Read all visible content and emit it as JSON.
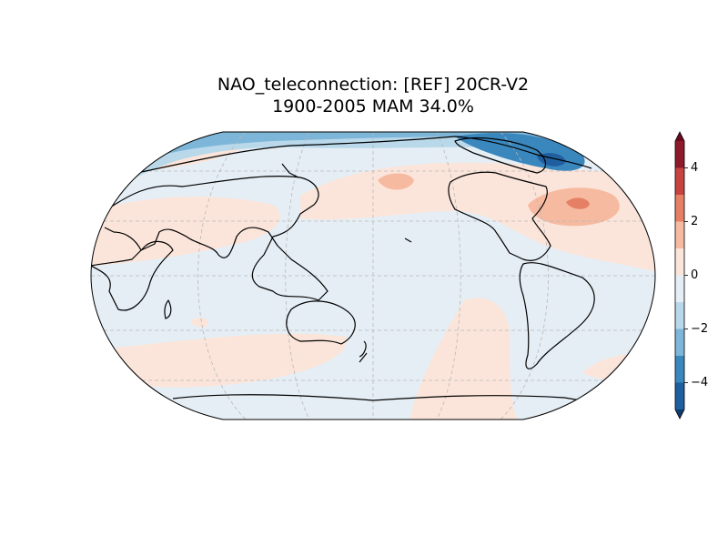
{
  "title_lines": [
    "NAO_teleconnection: [REF] 20CR-V2",
    "1900-2005 MAM 34.0%"
  ],
  "colorbar": {
    "levels": [
      -5,
      -4,
      -3,
      -2,
      -1,
      0,
      1,
      2,
      3,
      4,
      5
    ],
    "colors": [
      "#1f5f9f",
      "#3a87be",
      "#7db6d8",
      "#b9d8ea",
      "#e5eef5",
      "#fbe5da",
      "#f6baa0",
      "#e58065",
      "#c64340",
      "#8d1a2a"
    ],
    "under_color": "#0f3b6e",
    "over_color": "#6b0a1e",
    "ticks": [
      {
        "value": -4,
        "label": "−4"
      },
      {
        "value": -2,
        "label": "−2"
      },
      0,
      2,
      4
    ]
  }
}
